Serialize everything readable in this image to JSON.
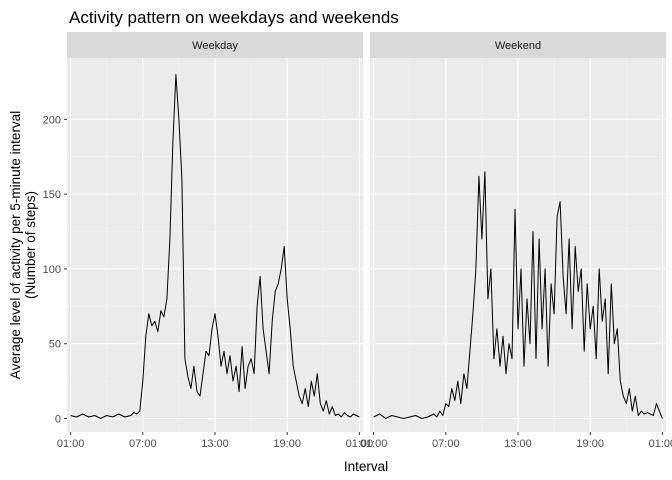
{
  "chart_data": {
    "type": "line",
    "title": "Activity pattern on weekdays and weekends",
    "xlabel": "Interval",
    "ylabel": "Average level of activity per 5-minute interval\n(Number of steps)",
    "x_ticks": [
      "01:00",
      "07:00",
      "13:00",
      "19:00",
      "01:00"
    ],
    "x_tick_hours": [
      0,
      6,
      12,
      18,
      24
    ],
    "y_ticks": [
      0,
      50,
      100,
      150,
      200
    ],
    "xlim_hours": [
      -0.3,
      24.3
    ],
    "ylim": [
      -9,
      241
    ],
    "grid": true,
    "facet_strip": "top",
    "panels": [
      {
        "name": "Weekday",
        "x_hours": [
          0,
          0.5,
          1,
          1.5,
          2,
          2.5,
          3,
          3.5,
          4,
          4.5,
          5,
          5.25,
          5.5,
          5.75,
          6,
          6.25,
          6.5,
          6.75,
          7,
          7.25,
          7.5,
          7.75,
          8,
          8.25,
          8.5,
          8.75,
          9,
          9.25,
          9.5,
          9.75,
          10,
          10.25,
          10.5,
          10.75,
          11,
          11.25,
          11.5,
          11.75,
          12,
          12.25,
          12.5,
          12.75,
          13,
          13.25,
          13.5,
          13.75,
          14,
          14.25,
          14.5,
          14.75,
          15,
          15.25,
          15.5,
          15.75,
          16,
          16.25,
          16.5,
          16.75,
          17,
          17.25,
          17.5,
          17.75,
          18,
          18.25,
          18.5,
          18.75,
          19,
          19.25,
          19.5,
          19.75,
          20,
          20.25,
          20.5,
          20.75,
          21,
          21.25,
          21.5,
          21.75,
          22,
          22.25,
          22.5,
          22.75,
          23,
          23.25,
          23.5,
          23.75,
          24
        ],
        "values": [
          2,
          1,
          3,
          1,
          2,
          0,
          2,
          1,
          3,
          1,
          2,
          4,
          3,
          5,
          25,
          55,
          70,
          62,
          65,
          58,
          72,
          68,
          80,
          120,
          185,
          230,
          200,
          160,
          40,
          28,
          20,
          35,
          18,
          15,
          30,
          45,
          42,
          60,
          70,
          55,
          35,
          45,
          30,
          42,
          25,
          35,
          18,
          48,
          20,
          35,
          40,
          30,
          75,
          95,
          60,
          45,
          30,
          65,
          85,
          90,
          100,
          115,
          80,
          60,
          35,
          25,
          15,
          10,
          20,
          8,
          25,
          15,
          30,
          10,
          5,
          12,
          3,
          8,
          2,
          3,
          1,
          4,
          2,
          1,
          3,
          2,
          1
        ]
      },
      {
        "name": "Weekend",
        "x_hours": [
          0,
          0.5,
          1,
          1.5,
          2,
          2.5,
          3,
          3.5,
          4,
          4.5,
          5,
          5.25,
          5.5,
          5.75,
          6,
          6.25,
          6.5,
          6.75,
          7,
          7.25,
          7.5,
          7.75,
          8,
          8.25,
          8.5,
          8.75,
          9,
          9.25,
          9.5,
          9.75,
          10,
          10.25,
          10.5,
          10.75,
          11,
          11.25,
          11.5,
          11.75,
          12,
          12.25,
          12.5,
          12.75,
          13,
          13.25,
          13.5,
          13.75,
          14,
          14.25,
          14.5,
          14.75,
          15,
          15.25,
          15.5,
          15.75,
          16,
          16.25,
          16.5,
          16.75,
          17,
          17.25,
          17.5,
          17.75,
          18,
          18.25,
          18.5,
          18.75,
          19,
          19.25,
          19.5,
          19.75,
          20,
          20.25,
          20.5,
          20.75,
          21,
          21.25,
          21.5,
          21.75,
          22,
          22.25,
          22.5,
          22.75,
          23,
          23.25,
          23.5,
          23.75,
          24
        ],
        "values": [
          1,
          3,
          0,
          2,
          1,
          0,
          1,
          2,
          0,
          1,
          3,
          1,
          5,
          2,
          10,
          8,
          20,
          12,
          25,
          10,
          30,
          20,
          45,
          70,
          100,
          162,
          120,
          165,
          80,
          100,
          40,
          60,
          35,
          55,
          30,
          50,
          40,
          140,
          60,
          100,
          35,
          80,
          50,
          125,
          40,
          120,
          60,
          100,
          35,
          90,
          70,
          135,
          145,
          95,
          70,
          120,
          60,
          115,
          85,
          100,
          45,
          90,
          60,
          75,
          40,
          100,
          65,
          80,
          30,
          90,
          50,
          60,
          25,
          15,
          10,
          20,
          5,
          15,
          2,
          5,
          3,
          4,
          3,
          2,
          10,
          5,
          0
        ]
      }
    ]
  }
}
